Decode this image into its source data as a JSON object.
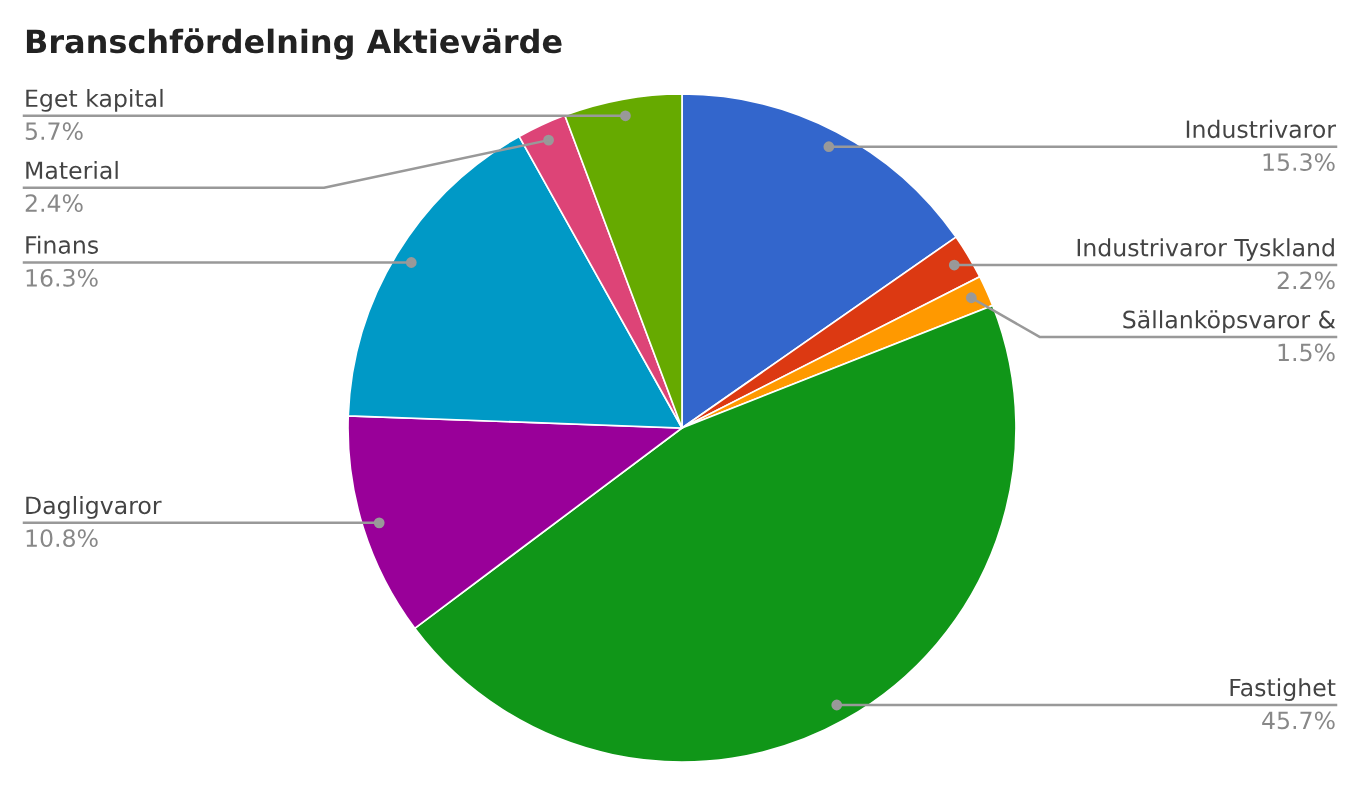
{
  "chart_data": {
    "type": "pie",
    "title": "Branschfördelning Aktievärde",
    "categories": [
      "Industrivaror",
      "Industrivaror Tyskland",
      "Sällanköpsvaror &",
      "Fastighet",
      "Dagligvaror",
      "Finans",
      "Material",
      "Eget kapital"
    ],
    "values": [
      15.3,
      2.2,
      1.5,
      45.7,
      10.8,
      16.3,
      2.4,
      5.7
    ],
    "value_labels": [
      "15.3%",
      "2.2%",
      "1.5%",
      "45.7%",
      "10.8%",
      "16.3%",
      "2.4%",
      "5.7%"
    ],
    "colors": [
      "#3366cc",
      "#dc3912",
      "#ff9900",
      "#109618",
      "#990099",
      "#0099c6",
      "#dd4477",
      "#66aa00"
    ],
    "legend": false
  }
}
